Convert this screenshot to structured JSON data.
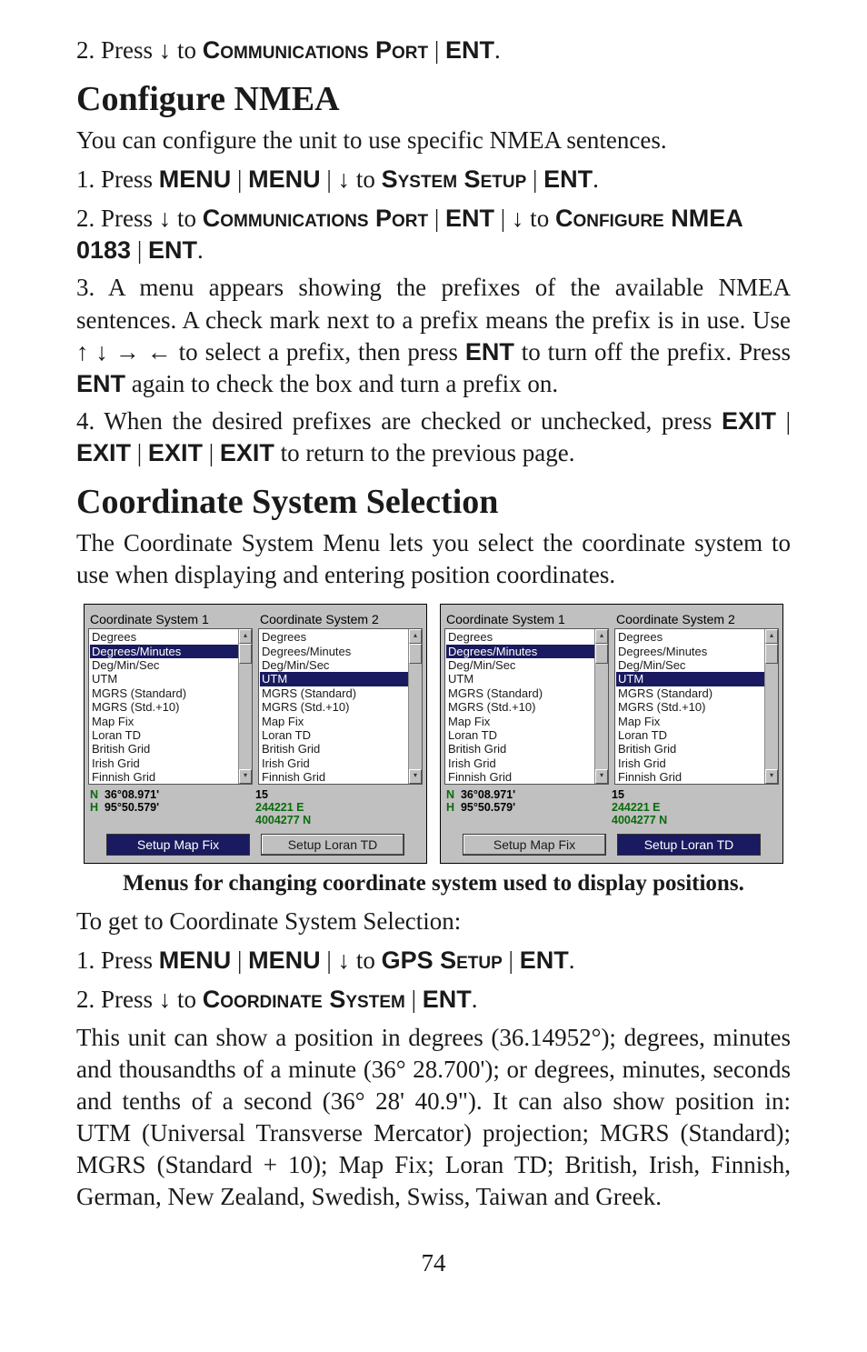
{
  "colors": {
    "text": "#1a1a1a",
    "highlight_bg": "#1a1a60",
    "highlight_fg": "#ffffff",
    "panel_bg": "#c0c0c0",
    "green": "#0b6b0b"
  },
  "glyphs": {
    "down": "↓",
    "up": "↑",
    "right": "→",
    "left": "←"
  },
  "step_top": "2. Press ↓ to ",
  "step_top_menu": "Communications Port",
  "step_top_sep": " | ",
  "step_top_ent": "ENT",
  "h1a": "Configure NMEA",
  "p1": "You can configure the unit to use specific NMEA sentences.",
  "s1_pre": "1. Press ",
  "s1_menu": "MENU",
  "s1_sep": " | ",
  "s1_down_to": "↓ to ",
  "s1_sys": "System Setup",
  "s1_ent": "ENT",
  "s2_pre": "2. Press ↓ to ",
  "s2_comm": "Communications Port",
  "s2_mid": " | ",
  "s2_ent": "ENT",
  "s2_down_to": " | ↓ to ",
  "s2_conf": "Configure NMEA 0183",
  "p3_a": "3. A menu appears showing the prefixes of the available NMEA sentences. A check mark next to a prefix means the prefix is in use. Use ↑ ↓ → ← to select a prefix, then press ",
  "p3_ent": "ENT",
  "p3_b": " to turn off the prefix. Press ",
  "p3_c": " again to check the box and turn a prefix on.",
  "p4_a": "4. When the desired prefixes are checked or unchecked, press ",
  "p4_exit": "EXIT",
  "p4_b": " to return to the previous page.",
  "h1b": "Coordinate System Selection",
  "p5": "The Coordinate System Menu lets you select the coordinate system to use when displaying and entering position coordinates.",
  "shot_col1_title": "Coordinate System 1",
  "shot_col2_title": "Coordinate System 2",
  "list_items": [
    "Degrees",
    "Degrees/Minutes",
    "Deg/Min/Sec",
    "UTM",
    "MGRS (Standard)",
    "MGRS (Std.+10)",
    "Map Fix",
    "Loran TD",
    "British Grid",
    "Irish Grid",
    "Finnish Grid"
  ],
  "left_highlight_idx": 1,
  "right_highlight_idx": 3,
  "shot1": {
    "lat_lbl": "N",
    "lat": "36°08.971'",
    "utm_val": "15",
    "lon_lbl": "H",
    "lon": "95°50.579'",
    "east": "244221 E",
    "north": "4004277 N",
    "btn_left": "Setup Map Fix",
    "btn_right": "Setup Loran TD",
    "sel_side": "left"
  },
  "shot2": {
    "lat_lbl": "N",
    "lat": "36°08.971'",
    "utm_val": "15",
    "lon_lbl": "H",
    "lon": "95°50.579'",
    "east": "244221 E",
    "north": "4004277 N",
    "btn_left": "Setup Map Fix",
    "btn_right": "Setup Loran TD",
    "sel_side": "right"
  },
  "caption": "Menus for changing coordinate system used to display positions.",
  "p6": "To get to Coordinate System Selection:",
  "s3_pre": "1. Press ",
  "s3_gps": "GPS Setup",
  "s4_pre": "2. Press ↓ to ",
  "s4_cs": "Coordinate System",
  "p7": "This unit can show a position in degrees (36.14952°); degrees, minutes and thousandths of a minute (36° 28.700'); or degrees, minutes, seconds and tenths of a second (36° 28' 40.9\"). It can also show position in: UTM (Universal Transverse Mercator) projection; MGRS (Standard); MGRS (Standard + 10); Map Fix; Loran TD; British, Irish, Finnish, German, New Zealand, Swedish, Swiss, Taiwan and Greek.",
  "page_number": "74"
}
